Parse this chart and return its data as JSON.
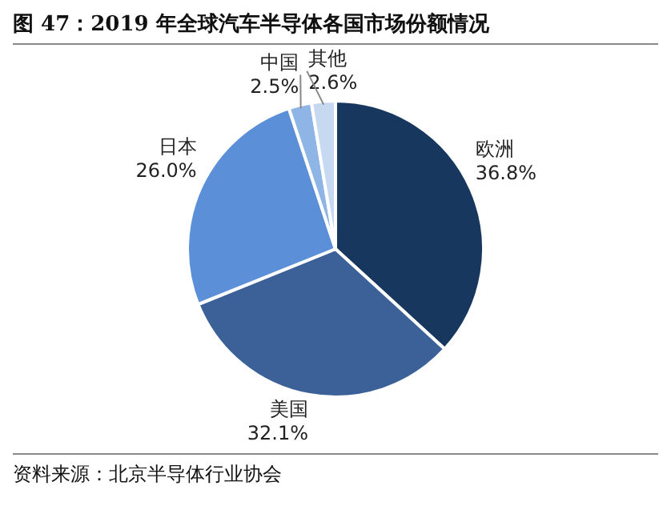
{
  "chart_data": {
    "type": "pie",
    "title": "图 47：2019 年全球汽车半导体各国市场份额情况",
    "categories": [
      "欧洲",
      "美国",
      "日本",
      "中国",
      "其他"
    ],
    "values": [
      36.8,
      32.1,
      26.0,
      2.5,
      2.6
    ],
    "value_labels": [
      "36.8%",
      "32.1%",
      "26.0%",
      "2.5%",
      "2.6%"
    ],
    "colors": [
      "#17375e",
      "#3b6198",
      "#5b8fd8",
      "#8fb4e6",
      "#c6d9f1"
    ],
    "legend": false,
    "annotations": [
      "资料来源：北京半导体行业协会"
    ]
  }
}
